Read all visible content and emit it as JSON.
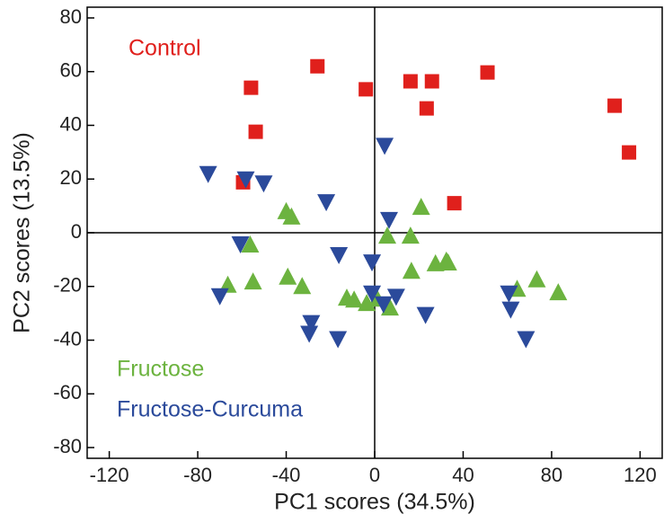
{
  "chart_data": {
    "type": "scatter",
    "x_label": "PC1 scores (34.5%)",
    "y_label": "PC2 scores (13.5%)",
    "xlim": [
      -130,
      130
    ],
    "ylim": [
      -84,
      84
    ],
    "xticks": [
      -120,
      -80,
      -40,
      0,
      40,
      80,
      120
    ],
    "yticks": [
      -80,
      -60,
      -40,
      -20,
      0,
      20,
      40,
      60,
      80
    ],
    "zero_lines": true,
    "series": [
      {
        "name": "Control",
        "color": "#e0201c",
        "marker": "square",
        "x": [
          -55.9,
          -53.8,
          -25.9,
          -4,
          16.2,
          25.9,
          23.5,
          51,
          108.5,
          115,
          36,
          -59.5
        ],
        "values": [
          54,
          37.6,
          62,
          53.4,
          56.4,
          56.4,
          46.3,
          59.7,
          47.3,
          29.9,
          11,
          18.8
        ]
      },
      {
        "name": "Fructose",
        "color": "#6cb33f",
        "marker": "triangle-up",
        "x": [
          -40,
          -37.6,
          -56.3,
          -66.4,
          -55,
          -39.3,
          -32.8,
          -12.6,
          -9.3,
          1.2,
          -3.6,
          5.7,
          16.2,
          21,
          16.6,
          27.5,
          32.4,
          33.2,
          64.4,
          73.3,
          83,
          6.9
        ],
        "values": [
          7.4,
          5.4,
          -5,
          -20,
          -18.8,
          -17,
          -20.5,
          -24.8,
          -25.5,
          -25.2,
          -26.8,
          -1.7,
          -1.7,
          9,
          -14.8,
          -12,
          -11,
          -11.7,
          -21.5,
          -18,
          -22.8,
          -28.5
        ]
      },
      {
        "name": "Fructose-Curcuma",
        "color": "#2b4a9b",
        "marker": "triangle-down",
        "x": [
          -75.3,
          -58.3,
          -50.2,
          -21.9,
          4.5,
          6.5,
          -60.7,
          -70,
          -28.7,
          -29.6,
          -16.2,
          -16.6,
          -1.2,
          -1.2,
          4,
          9.7,
          23,
          60.7,
          61.5,
          68.4
        ],
        "values": [
          22.5,
          20.5,
          19,
          12,
          33,
          5.4,
          -3.7,
          -23,
          -33,
          -37,
          -7.7,
          -39,
          -10.4,
          -22,
          -26,
          -23.2,
          -30,
          -22,
          -28,
          -39
        ]
      }
    ]
  }
}
